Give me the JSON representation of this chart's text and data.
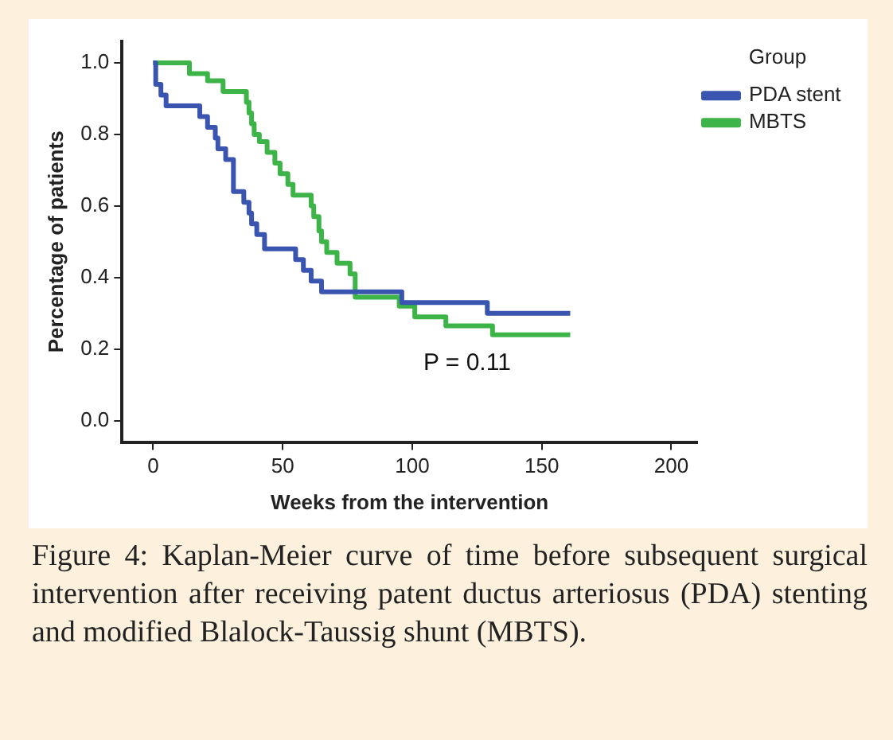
{
  "chart_data": {
    "type": "step",
    "xlabel": "Weeks from the intervention",
    "ylabel": "Percentage of patients",
    "legend_title": "Group",
    "legend": "top right",
    "grid": false,
    "xlim": [
      -12,
      210
    ],
    "xticks": [
      0,
      50,
      100,
      150,
      200
    ],
    "ylim": [
      -0.06,
      1.06
    ],
    "yticks": [
      {
        "value": 0,
        "label": "0.0"
      },
      {
        "value": 0.2,
        "label": "0.2"
      },
      {
        "value": 0.4,
        "label": "0.4"
      },
      {
        "value": 0.6,
        "label": "0.6"
      },
      {
        "value": 0.8,
        "label": "0.8"
      },
      {
        "value": 1,
        "label": "1.0"
      }
    ],
    "series": [
      {
        "name": "PDA stent",
        "color": "#3a55b0",
        "x": [
          0,
          1,
          3,
          5,
          18,
          21,
          24,
          25,
          28,
          31,
          35,
          37,
          38,
          40,
          43,
          55,
          58,
          61,
          65,
          96,
          129,
          161
        ],
        "values": [
          1,
          0.94,
          0.91,
          0.88,
          0.85,
          0.82,
          0.79,
          0.76,
          0.73,
          0.64,
          0.61,
          0.58,
          0.55,
          0.52,
          0.48,
          0.45,
          0.42,
          0.39,
          0.36,
          0.33,
          0.3,
          0.3
        ]
      },
      {
        "name": "MBTS",
        "color": "#3cb447",
        "x": [
          0,
          14,
          21,
          27,
          36,
          37,
          38,
          39,
          41,
          44,
          47,
          49,
          52,
          54,
          61,
          62,
          64,
          65,
          67,
          71,
          76,
          78,
          95,
          101,
          113,
          131,
          161
        ],
        "values": [
          1,
          0.97,
          0.95,
          0.92,
          0.89,
          0.86,
          0.83,
          0.8,
          0.78,
          0.75,
          0.72,
          0.69,
          0.66,
          0.63,
          0.6,
          0.57,
          0.53,
          0.5,
          0.47,
          0.44,
          0.41,
          0.345,
          0.32,
          0.29,
          0.265,
          0.24,
          0.24
        ]
      }
    ],
    "annotations": [
      "P = 0.11",
      "Figure 4: Kaplan-Meier curve of time before subsequent surgical intervention after receiving patent ductus arteriosus (PDA) stenting and modified Blalock-Taussig shunt (MBTS)."
    ]
  }
}
